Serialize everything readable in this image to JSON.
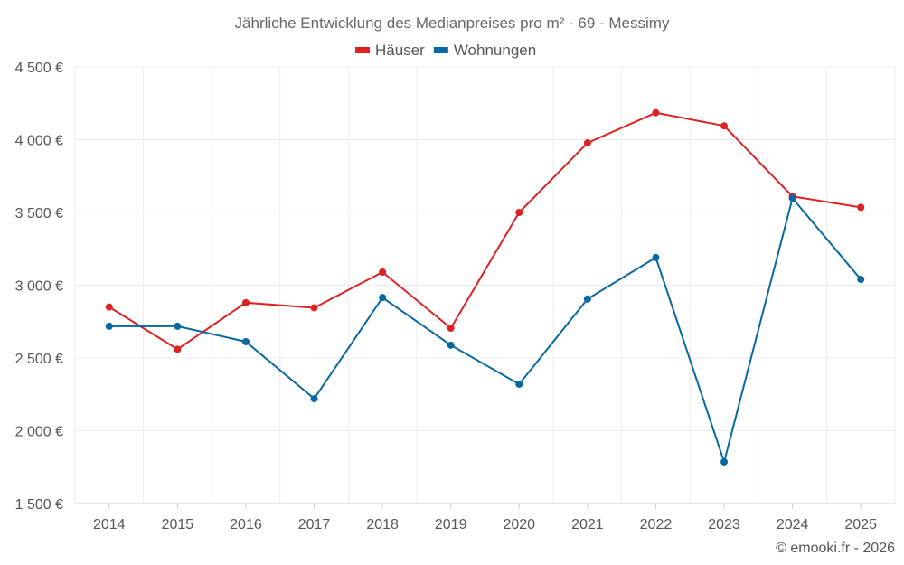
{
  "chart_data": {
    "type": "line",
    "title": "Jährliche Entwicklung des Medianpreises pro m² - 69 - Messimy",
    "xlabel": "",
    "ylabel": "",
    "categories": [
      "2014",
      "2015",
      "2016",
      "2017",
      "2018",
      "2019",
      "2020",
      "2021",
      "2022",
      "2023",
      "2024",
      "2025"
    ],
    "ylim": [
      1500,
      4500
    ],
    "yticks": [
      1500,
      2000,
      2500,
      3000,
      3500,
      4000,
      4500
    ],
    "ytick_labels": [
      "1 500 €",
      "2 000 €",
      "2 500 €",
      "3 000 €",
      "3 500 €",
      "4 000 €",
      "4 500 €"
    ],
    "grid": true,
    "legend_position": "top-center",
    "series": [
      {
        "name": "Häuser",
        "color": "#dd2222",
        "values": [
          2850,
          2560,
          2880,
          2845,
          3090,
          2705,
          3500,
          3978,
          4185,
          4095,
          3610,
          3535
        ]
      },
      {
        "name": "Wohnungen",
        "color": "#0868a0",
        "values": [
          2718,
          2718,
          2612,
          2220,
          2915,
          2588,
          2320,
          2905,
          3190,
          1786,
          3598,
          3040
        ]
      }
    ],
    "credit": "© emooki.fr - 2026"
  }
}
